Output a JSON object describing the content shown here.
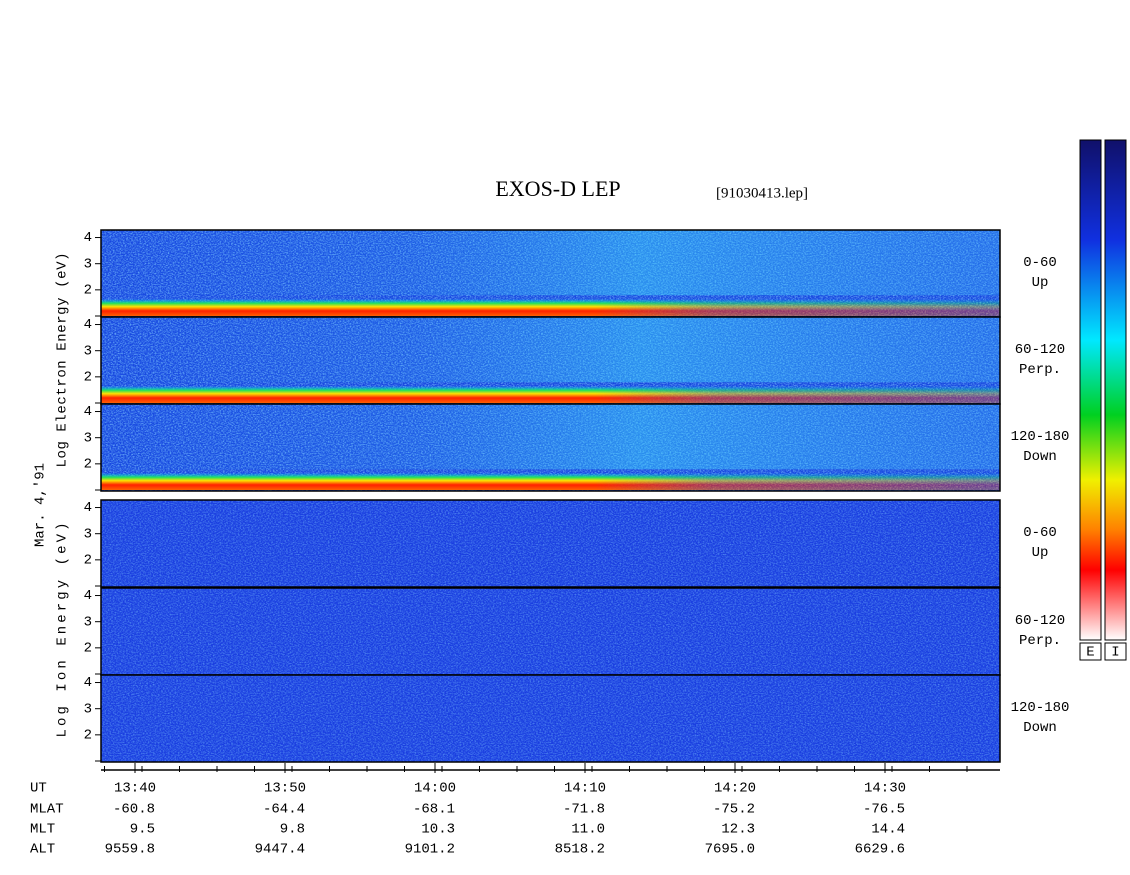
{
  "title": "EXOS-D LEP",
  "file": "[91030413.lep]",
  "electron_label": "Log Electron Energy (eV)",
  "date": "Mar. 4,'91",
  "ion_label": "Log Ion Energy (eV)",
  "ylim": [
    1,
    4.25
  ],
  "yticks": [
    2,
    3,
    4
  ],
  "panels": [
    {
      "range": "0-60",
      "direction": "Up"
    },
    {
      "range": "60-120",
      "direction": "Perp."
    },
    {
      "range": "120-180",
      "direction": "Down"
    }
  ],
  "axis_rows": [
    {
      "name": "UT",
      "values": [
        "13:40",
        "13:50",
        "14:00",
        "14:10",
        "14:20",
        "14:30"
      ]
    },
    {
      "name": "MLAT",
      "values": [
        "-60.8",
        "-64.4",
        "-68.1",
        "-71.8",
        "-75.2",
        "-76.5"
      ]
    },
    {
      "name": "MLT",
      "values": [
        "9.5",
        "9.8",
        "10.3",
        "11.0",
        "12.3",
        "14.4"
      ]
    },
    {
      "name": "ALT",
      "values": [
        "9559.8",
        "9447.4",
        "9101.2",
        "8518.2",
        "7695.0",
        "6629.6"
      ]
    }
  ],
  "colorbar_labels": [
    "E",
    "I"
  ]
}
